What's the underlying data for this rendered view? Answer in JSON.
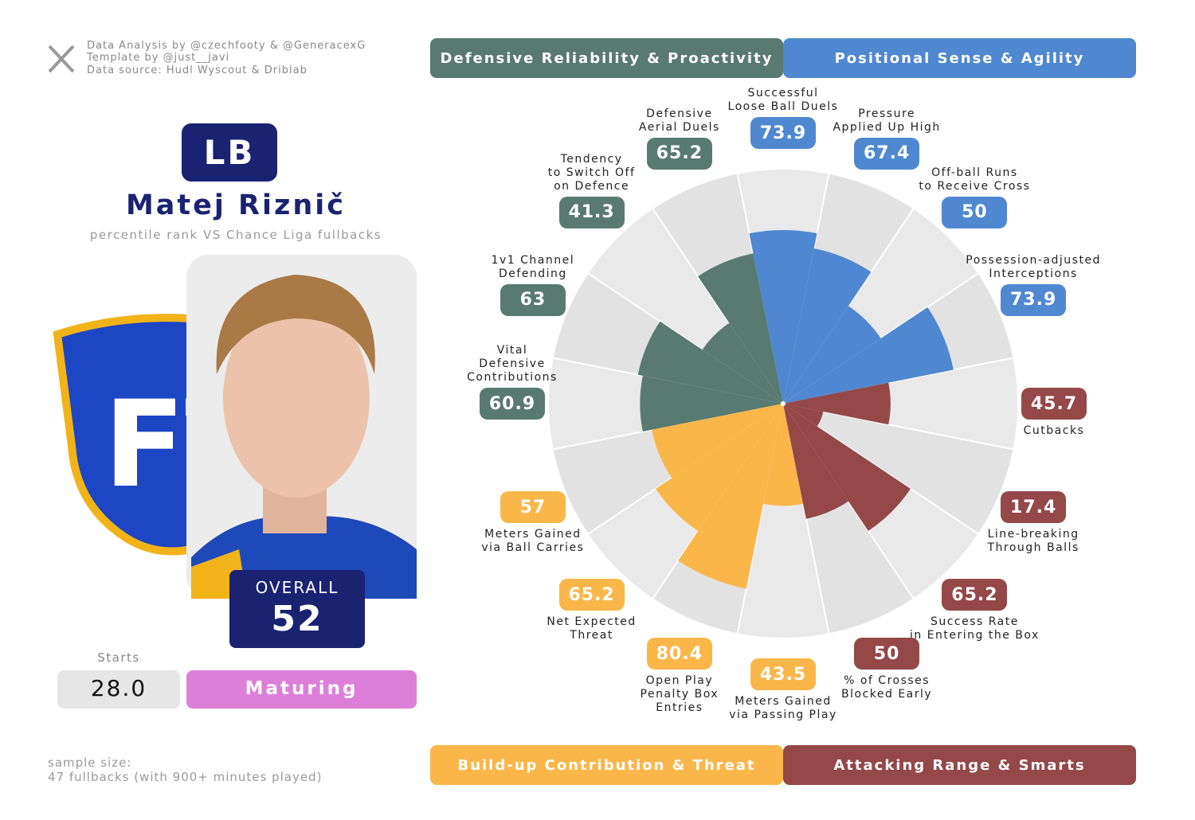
{
  "header": {
    "credits": [
      "Data Analysis by @czechfooty & @GeneracexG",
      "Template by @just__javi",
      "Data source: Hudl Wyscout & Driblab"
    ]
  },
  "player": {
    "position": "LB",
    "name": "Matej Riznič",
    "subtitle": "percentile rank VS Chance Liga fullbacks",
    "overall_label": "OVERALL",
    "overall": 52,
    "starts_label": "Starts",
    "starts": "28.0",
    "stage": "Maturing"
  },
  "footer": {
    "sample": [
      "sample size:",
      "47 fullbacks (with 900+ minutes played)"
    ]
  },
  "chart_data": {
    "type": "pizza",
    "rlim": [
      0,
      100
    ],
    "categories": [
      "Successful\nLoose Ball Duels",
      "Pressure\nApplied Up High",
      "Off-ball Runs\nto Receive Cross",
      "Possession-adjusted\nInterceptions",
      "Cutbacks",
      "Line-breaking\nThrough Balls",
      "Success Rate\nin Entering the Box",
      "% of Crosses\nBlocked Early",
      "Meters Gained\nvia Passing Play",
      "Open Play\nPenalty Box\nEntries",
      "Net Expected\nThreat",
      "Meters Gained\nvia Ball Carries",
      "Vital\nDefensive\nContributions",
      "1v1 Channel\nDefending",
      "Tendency\nto Switch Off\non Defence",
      "Defensive\nAerial Duels"
    ],
    "series": [
      {
        "name": "Defensive Reliability & Proactivity",
        "color": "#587a70",
        "values": [
          null,
          null,
          null,
          null,
          null,
          null,
          null,
          null,
          null,
          null,
          null,
          null,
          60.9,
          63,
          41.3,
          65.2
        ]
      },
      {
        "name": "Positional Sense & Agility",
        "color": "#4f88d0",
        "values": [
          73.9,
          67.4,
          50,
          73.9,
          null,
          null,
          null,
          null,
          null,
          null,
          null,
          null,
          null,
          null,
          null,
          null
        ]
      },
      {
        "name": "Build-up Contribution & Threat",
        "color": "#fbb64a",
        "values": [
          null,
          null,
          null,
          null,
          null,
          null,
          null,
          null,
          43.5,
          80.4,
          65.2,
          57,
          null,
          null,
          null,
          null
        ]
      },
      {
        "name": "Attacking Range & Smarts",
        "color": "#944848",
        "values": [
          null,
          null,
          null,
          null,
          45.7,
          17.4,
          65.2,
          50,
          null,
          null,
          null,
          null,
          null,
          null,
          null,
          null
        ]
      }
    ]
  }
}
